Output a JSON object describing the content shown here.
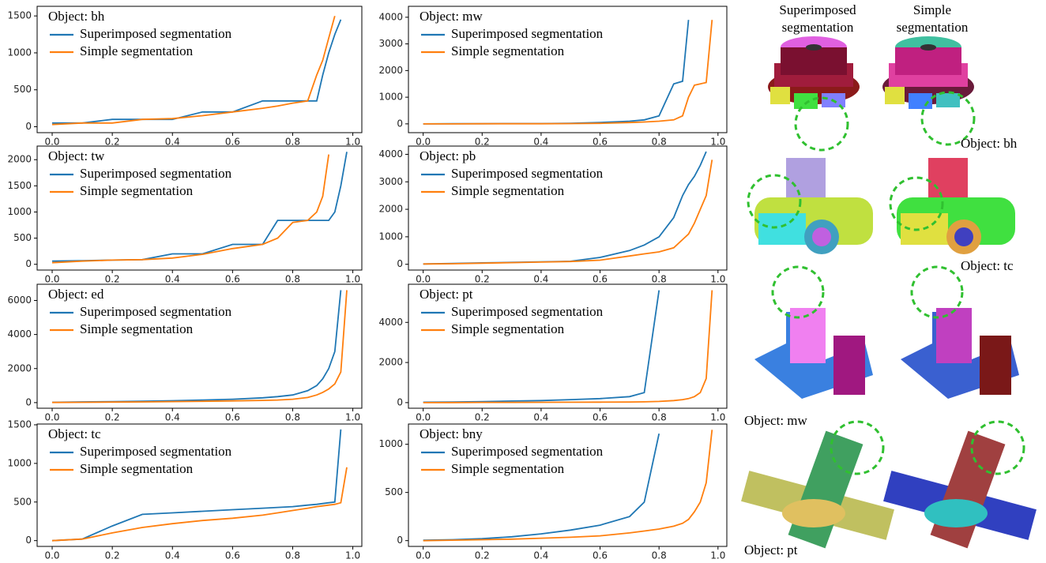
{
  "chart_data": [
    {
      "type": "line",
      "title": "Object: bh",
      "x": [
        0,
        0.1,
        0.2,
        0.3,
        0.4,
        0.5,
        0.6,
        0.7,
        0.75,
        0.8,
        0.85,
        0.88,
        0.9,
        0.92,
        0.94,
        0.96,
        0.98
      ],
      "series": [
        {
          "name": "Superimposed segmentation",
          "color": "#1f77b4",
          "values": [
            50,
            50,
            100,
            100,
            100,
            200,
            200,
            350,
            350,
            350,
            350,
            350,
            700,
            1000,
            1250,
            1450,
            null
          ]
        },
        {
          "name": "Simple segmentation",
          "color": "#ff7f0e",
          "values": [
            30,
            50,
            50,
            100,
            110,
            150,
            200,
            250,
            280,
            320,
            350,
            700,
            900,
            1200,
            1500,
            null,
            null
          ]
        }
      ],
      "xlim": [
        -0.05,
        1.03
      ],
      "ylim": [
        -80,
        1630
      ],
      "xticks": [
        {
          "value": 0,
          "label": "0.0"
        },
        0.2,
        0.4,
        0.6,
        0.8,
        {
          "value": 1,
          "label": "1.0"
        }
      ],
      "yticks": [
        0,
        500,
        1000,
        1500
      ]
    },
    {
      "type": "line",
      "title": "Object: mw",
      "x": [
        0,
        0.1,
        0.2,
        0.3,
        0.4,
        0.5,
        0.6,
        0.7,
        0.75,
        0.8,
        0.85,
        0.88,
        0.9,
        0.92,
        0.94,
        0.96,
        0.98
      ],
      "series": [
        {
          "name": "Superimposed segmentation",
          "color": "#1f77b4",
          "values": [
            0,
            5,
            5,
            10,
            10,
            20,
            50,
            100,
            150,
            300,
            1500,
            1600,
            3900,
            null,
            null,
            null,
            null
          ]
        },
        {
          "name": "Simple segmentation",
          "color": "#ff7f0e",
          "values": [
            0,
            0,
            5,
            5,
            5,
            10,
            20,
            50,
            70,
            100,
            150,
            300,
            1000,
            1450,
            1500,
            1550,
            3900
          ]
        }
      ],
      "xlim": [
        -0.05,
        1.03
      ],
      "ylim": [
        -330,
        4410
      ],
      "xticks": [
        {
          "value": 0,
          "label": "0.0"
        },
        0.2,
        0.4,
        0.6,
        0.8,
        {
          "value": 1,
          "label": "1.0"
        }
      ],
      "yticks": [
        0,
        1000,
        2000,
        3000,
        4000
      ]
    },
    {
      "type": "line",
      "title": "Object: tw",
      "x": [
        0,
        0.1,
        0.2,
        0.3,
        0.4,
        0.5,
        0.6,
        0.7,
        0.75,
        0.8,
        0.85,
        0.88,
        0.9,
        0.92,
        0.94,
        0.96,
        0.98
      ],
      "series": [
        {
          "name": "Superimposed segmentation",
          "color": "#1f77b4",
          "values": [
            60,
            70,
            80,
            90,
            200,
            200,
            380,
            380,
            840,
            840,
            840,
            840,
            840,
            840,
            1000,
            1500,
            2150
          ]
        },
        {
          "name": "Simple segmentation",
          "color": "#ff7f0e",
          "values": [
            30,
            60,
            80,
            90,
            120,
            190,
            300,
            380,
            500,
            800,
            840,
            1000,
            1300,
            2100,
            null,
            null,
            null
          ]
        }
      ],
      "xlim": [
        -0.05,
        1.03
      ],
      "ylim": [
        -110,
        2260
      ],
      "xticks": [
        {
          "value": 0,
          "label": "0.0"
        },
        0.2,
        0.4,
        0.6,
        0.8,
        {
          "value": 1,
          "label": "1.0"
        }
      ],
      "yticks": [
        0,
        500,
        1000,
        1500,
        2000
      ]
    },
    {
      "type": "line",
      "title": "Object: pb",
      "x": [
        0,
        0.1,
        0.2,
        0.3,
        0.4,
        0.5,
        0.6,
        0.7,
        0.75,
        0.8,
        0.85,
        0.88,
        0.9,
        0.92,
        0.94,
        0.96,
        0.98
      ],
      "series": [
        {
          "name": "Superimposed segmentation",
          "color": "#1f77b4",
          "values": [
            10,
            30,
            50,
            70,
            90,
            110,
            250,
            500,
            700,
            1000,
            1700,
            2500,
            2900,
            3200,
            3600,
            4100,
            null
          ]
        },
        {
          "name": "Simple segmentation",
          "color": "#ff7f0e",
          "values": [
            10,
            20,
            40,
            60,
            80,
            100,
            150,
            300,
            380,
            450,
            600,
            900,
            1100,
            1500,
            2000,
            2500,
            3800
          ]
        }
      ],
      "xlim": [
        -0.05,
        1.03
      ],
      "ylim": [
        -210,
        4300
      ],
      "xticks": [
        {
          "value": 0,
          "label": "0.0"
        },
        0.2,
        0.4,
        0.6,
        0.8,
        {
          "value": 1,
          "label": "1.0"
        }
      ],
      "yticks": [
        0,
        1000,
        2000,
        3000,
        4000
      ]
    },
    {
      "type": "line",
      "title": "Object: ed",
      "x": [
        0,
        0.1,
        0.2,
        0.3,
        0.4,
        0.5,
        0.6,
        0.7,
        0.75,
        0.8,
        0.85,
        0.88,
        0.9,
        0.92,
        0.94,
        0.96,
        0.98
      ],
      "series": [
        {
          "name": "Superimposed segmentation",
          "color": "#1f77b4",
          "values": [
            20,
            40,
            60,
            80,
            110,
            150,
            200,
            280,
            350,
            450,
            700,
            1000,
            1400,
            2000,
            3000,
            6600,
            null
          ]
        },
        {
          "name": "Simple segmentation",
          "color": "#ff7f0e",
          "values": [
            10,
            20,
            30,
            40,
            60,
            80,
            100,
            130,
            150,
            200,
            300,
            450,
            600,
            800,
            1100,
            1800,
            6600
          ]
        }
      ],
      "xlim": [
        -0.05,
        1.03
      ],
      "ylim": [
        -330,
        6950
      ],
      "xticks": [
        {
          "value": 0,
          "label": "0.0"
        },
        0.2,
        0.4,
        0.6,
        0.8,
        {
          "value": 1,
          "label": "1.0"
        }
      ],
      "yticks": [
        0,
        2000,
        4000,
        6000
      ]
    },
    {
      "type": "line",
      "title": "Object: pt",
      "x": [
        0,
        0.1,
        0.2,
        0.3,
        0.4,
        0.5,
        0.6,
        0.7,
        0.75,
        0.8,
        0.85,
        0.88,
        0.9,
        0.92,
        0.94,
        0.96,
        0.98
      ],
      "series": [
        {
          "name": "Superimposed segmentation",
          "color": "#1f77b4",
          "values": [
            20,
            30,
            50,
            80,
            100,
            150,
            200,
            300,
            500,
            5600,
            null,
            null,
            null,
            null,
            null,
            null,
            null
          ]
        },
        {
          "name": "Simple segmentation",
          "color": "#ff7f0e",
          "values": [
            0,
            5,
            10,
            10,
            15,
            20,
            25,
            30,
            40,
            60,
            100,
            150,
            200,
            300,
            500,
            1200,
            5600
          ]
        }
      ],
      "xlim": [
        -0.05,
        1.03
      ],
      "ylim": [
        -280,
        5900
      ],
      "xticks": [
        {
          "value": 0,
          "label": "0.0"
        },
        0.2,
        0.4,
        0.6,
        0.8,
        {
          "value": 1,
          "label": "1.0"
        }
      ],
      "yticks": [
        0,
        2000,
        4000
      ]
    },
    {
      "type": "line",
      "title": "Object: tc",
      "x": [
        0,
        0.1,
        0.2,
        0.3,
        0.4,
        0.5,
        0.6,
        0.7,
        0.75,
        0.8,
        0.85,
        0.88,
        0.9,
        0.92,
        0.94,
        0.96,
        0.98
      ],
      "series": [
        {
          "name": "Superimposed segmentation",
          "color": "#1f77b4",
          "values": [
            0,
            20,
            190,
            340,
            360,
            380,
            400,
            420,
            430,
            440,
            460,
            470,
            480,
            490,
            500,
            1440,
            null
          ]
        },
        {
          "name": "Simple segmentation",
          "color": "#ff7f0e",
          "values": [
            0,
            20,
            100,
            170,
            220,
            260,
            290,
            330,
            360,
            390,
            420,
            440,
            450,
            460,
            470,
            490,
            950
          ]
        }
      ],
      "xlim": [
        -0.05,
        1.03
      ],
      "ylim": [
        -75,
        1510
      ],
      "xticks": [
        {
          "value": 0,
          "label": "0.0"
        },
        0.2,
        0.4,
        0.6,
        0.8,
        {
          "value": 1,
          "label": "1.0"
        }
      ],
      "yticks": [
        0,
        500,
        1000,
        1500
      ]
    },
    {
      "type": "line",
      "title": "Object: bny",
      "x": [
        0,
        0.1,
        0.2,
        0.3,
        0.4,
        0.5,
        0.6,
        0.7,
        0.75,
        0.8,
        0.85,
        0.88,
        0.9,
        0.92,
        0.94,
        0.96,
        0.98
      ],
      "series": [
        {
          "name": "Superimposed segmentation",
          "color": "#1f77b4",
          "values": [
            5,
            10,
            20,
            40,
            70,
            110,
            160,
            250,
            400,
            1110,
            null,
            null,
            null,
            null,
            null,
            null,
            null
          ]
        },
        {
          "name": "Simple segmentation",
          "color": "#ff7f0e",
          "values": [
            0,
            5,
            10,
            15,
            25,
            35,
            50,
            80,
            100,
            120,
            150,
            180,
            220,
            300,
            400,
            600,
            1150
          ]
        }
      ],
      "xlim": [
        -0.05,
        1.03
      ],
      "ylim": [
        -60,
        1210
      ],
      "xticks": [
        {
          "value": 0,
          "label": "0.0"
        },
        0.2,
        0.4,
        0.6,
        0.8,
        {
          "value": 1,
          "label": "1.0"
        }
      ],
      "yticks": [
        0,
        500,
        1000
      ]
    }
  ],
  "image_panel": {
    "column_titles": [
      "Superimposed segmentation",
      "Simple segmentation"
    ],
    "object_labels": [
      "Object: bh",
      "Object: tc",
      "Object: mw",
      "Object: pt"
    ]
  }
}
